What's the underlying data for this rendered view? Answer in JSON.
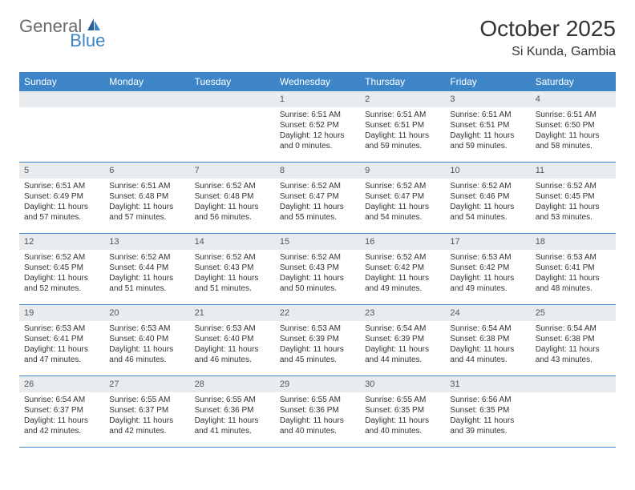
{
  "logo": {
    "text1": "General",
    "text2": "Blue",
    "color1": "#6a6a6a",
    "color2": "#3d85c6"
  },
  "title": "October 2025",
  "location": "Si Kunda, Gambia",
  "colors": {
    "header_bg": "#3d85c6",
    "header_text": "#ffffff",
    "band_bg": "#e8ecef",
    "text": "#333333",
    "row_border": "#3d85c6"
  },
  "typography": {
    "title_fontsize": 28,
    "subtitle_fontsize": 16,
    "dayheader_fontsize": 12,
    "daynum_fontsize": 11,
    "body_fontsize": 10
  },
  "day_headers": [
    "Sunday",
    "Monday",
    "Tuesday",
    "Wednesday",
    "Thursday",
    "Friday",
    "Saturday"
  ],
  "weeks": [
    [
      null,
      null,
      null,
      {
        "n": "1",
        "sunrise": "6:51 AM",
        "sunset": "6:52 PM",
        "daylight_h": "12",
        "daylight_m": "0"
      },
      {
        "n": "2",
        "sunrise": "6:51 AM",
        "sunset": "6:51 PM",
        "daylight_h": "11",
        "daylight_m": "59"
      },
      {
        "n": "3",
        "sunrise": "6:51 AM",
        "sunset": "6:51 PM",
        "daylight_h": "11",
        "daylight_m": "59"
      },
      {
        "n": "4",
        "sunrise": "6:51 AM",
        "sunset": "6:50 PM",
        "daylight_h": "11",
        "daylight_m": "58"
      }
    ],
    [
      {
        "n": "5",
        "sunrise": "6:51 AM",
        "sunset": "6:49 PM",
        "daylight_h": "11",
        "daylight_m": "57"
      },
      {
        "n": "6",
        "sunrise": "6:51 AM",
        "sunset": "6:48 PM",
        "daylight_h": "11",
        "daylight_m": "57"
      },
      {
        "n": "7",
        "sunrise": "6:52 AM",
        "sunset": "6:48 PM",
        "daylight_h": "11",
        "daylight_m": "56"
      },
      {
        "n": "8",
        "sunrise": "6:52 AM",
        "sunset": "6:47 PM",
        "daylight_h": "11",
        "daylight_m": "55"
      },
      {
        "n": "9",
        "sunrise": "6:52 AM",
        "sunset": "6:47 PM",
        "daylight_h": "11",
        "daylight_m": "54"
      },
      {
        "n": "10",
        "sunrise": "6:52 AM",
        "sunset": "6:46 PM",
        "daylight_h": "11",
        "daylight_m": "54"
      },
      {
        "n": "11",
        "sunrise": "6:52 AM",
        "sunset": "6:45 PM",
        "daylight_h": "11",
        "daylight_m": "53"
      }
    ],
    [
      {
        "n": "12",
        "sunrise": "6:52 AM",
        "sunset": "6:45 PM",
        "daylight_h": "11",
        "daylight_m": "52"
      },
      {
        "n": "13",
        "sunrise": "6:52 AM",
        "sunset": "6:44 PM",
        "daylight_h": "11",
        "daylight_m": "51"
      },
      {
        "n": "14",
        "sunrise": "6:52 AM",
        "sunset": "6:43 PM",
        "daylight_h": "11",
        "daylight_m": "51"
      },
      {
        "n": "15",
        "sunrise": "6:52 AM",
        "sunset": "6:43 PM",
        "daylight_h": "11",
        "daylight_m": "50"
      },
      {
        "n": "16",
        "sunrise": "6:52 AM",
        "sunset": "6:42 PM",
        "daylight_h": "11",
        "daylight_m": "49"
      },
      {
        "n": "17",
        "sunrise": "6:53 AM",
        "sunset": "6:42 PM",
        "daylight_h": "11",
        "daylight_m": "49"
      },
      {
        "n": "18",
        "sunrise": "6:53 AM",
        "sunset": "6:41 PM",
        "daylight_h": "11",
        "daylight_m": "48"
      }
    ],
    [
      {
        "n": "19",
        "sunrise": "6:53 AM",
        "sunset": "6:41 PM",
        "daylight_h": "11",
        "daylight_m": "47"
      },
      {
        "n": "20",
        "sunrise": "6:53 AM",
        "sunset": "6:40 PM",
        "daylight_h": "11",
        "daylight_m": "46"
      },
      {
        "n": "21",
        "sunrise": "6:53 AM",
        "sunset": "6:40 PM",
        "daylight_h": "11",
        "daylight_m": "46"
      },
      {
        "n": "22",
        "sunrise": "6:53 AM",
        "sunset": "6:39 PM",
        "daylight_h": "11",
        "daylight_m": "45"
      },
      {
        "n": "23",
        "sunrise": "6:54 AM",
        "sunset": "6:39 PM",
        "daylight_h": "11",
        "daylight_m": "44"
      },
      {
        "n": "24",
        "sunrise": "6:54 AM",
        "sunset": "6:38 PM",
        "daylight_h": "11",
        "daylight_m": "44"
      },
      {
        "n": "25",
        "sunrise": "6:54 AM",
        "sunset": "6:38 PM",
        "daylight_h": "11",
        "daylight_m": "43"
      }
    ],
    [
      {
        "n": "26",
        "sunrise": "6:54 AM",
        "sunset": "6:37 PM",
        "daylight_h": "11",
        "daylight_m": "42"
      },
      {
        "n": "27",
        "sunrise": "6:55 AM",
        "sunset": "6:37 PM",
        "daylight_h": "11",
        "daylight_m": "42"
      },
      {
        "n": "28",
        "sunrise": "6:55 AM",
        "sunset": "6:36 PM",
        "daylight_h": "11",
        "daylight_m": "41"
      },
      {
        "n": "29",
        "sunrise": "6:55 AM",
        "sunset": "6:36 PM",
        "daylight_h": "11",
        "daylight_m": "40"
      },
      {
        "n": "30",
        "sunrise": "6:55 AM",
        "sunset": "6:35 PM",
        "daylight_h": "11",
        "daylight_m": "40"
      },
      {
        "n": "31",
        "sunrise": "6:56 AM",
        "sunset": "6:35 PM",
        "daylight_h": "11",
        "daylight_m": "39"
      },
      null
    ]
  ],
  "labels": {
    "sunrise_prefix": "Sunrise: ",
    "sunset_prefix": "Sunset: ",
    "daylight_prefix": "Daylight: ",
    "hours_word": " hours",
    "and_word": "and ",
    "minutes_word": " minutes."
  }
}
